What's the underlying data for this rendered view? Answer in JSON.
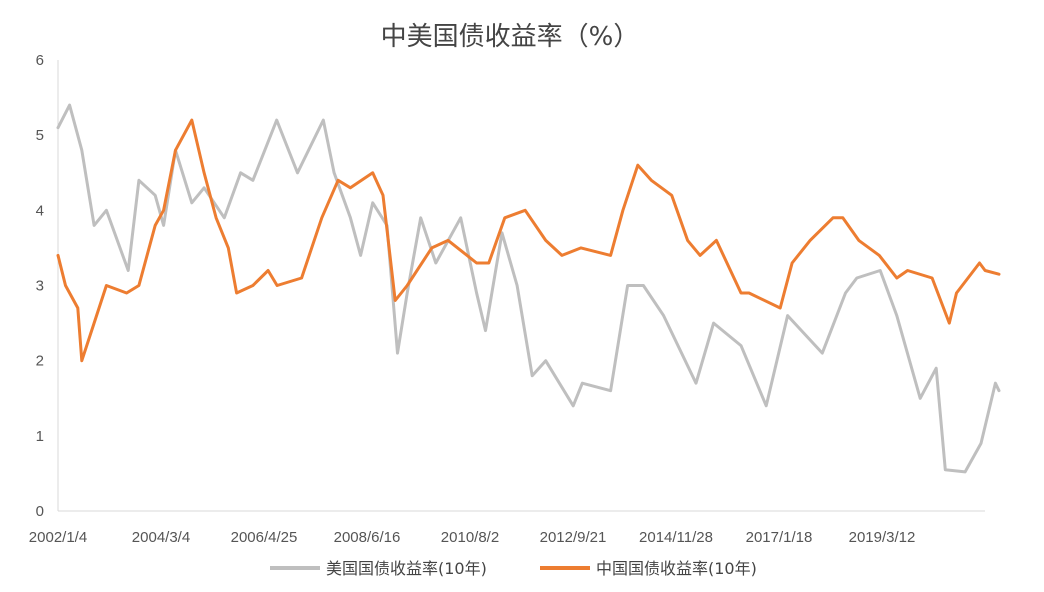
{
  "chart_data": {
    "type": "line",
    "title": "中美国债收益率（%）",
    "xlabel": "",
    "ylabel": "",
    "ylim": [
      0,
      6
    ],
    "y_ticks": [
      "0",
      "1",
      "2",
      "3",
      "4",
      "5",
      "6"
    ],
    "x_tick_labels": [
      "2002/1/4",
      "2004/3/4",
      "2006/4/25",
      "2008/6/16",
      "2010/8/2",
      "2012/9/21",
      "2014/11/28",
      "2017/1/18",
      "2019/3/12"
    ],
    "x_range": [
      "2002-01-04",
      "2020-12-31"
    ],
    "grid": false,
    "legend_position": "bottom",
    "series": [
      {
        "name": "美国国债收益率(10年)",
        "color": "#bfbfbf",
        "points": [
          [
            "2002-01-04",
            5.1
          ],
          [
            "2002-04-01",
            5.4
          ],
          [
            "2002-07-01",
            4.8
          ],
          [
            "2002-10-01",
            3.8
          ],
          [
            "2003-01-01",
            4.0
          ],
          [
            "2003-06-13",
            3.2
          ],
          [
            "2003-09-01",
            4.4
          ],
          [
            "2004-01-01",
            4.2
          ],
          [
            "2004-03-04",
            3.8
          ],
          [
            "2004-06-01",
            4.8
          ],
          [
            "2004-10-01",
            4.1
          ],
          [
            "2005-01-01",
            4.3
          ],
          [
            "2005-06-01",
            3.9
          ],
          [
            "2005-10-01",
            4.5
          ],
          [
            "2006-01-01",
            4.4
          ],
          [
            "2006-06-28",
            5.2
          ],
          [
            "2006-12-01",
            4.5
          ],
          [
            "2007-06-12",
            5.2
          ],
          [
            "2007-09-01",
            4.5
          ],
          [
            "2008-01-01",
            3.9
          ],
          [
            "2008-03-17",
            3.4
          ],
          [
            "2008-06-16",
            4.1
          ],
          [
            "2008-10-01",
            3.8
          ],
          [
            "2008-12-18",
            2.1
          ],
          [
            "2009-03-01",
            2.9
          ],
          [
            "2009-06-10",
            3.9
          ],
          [
            "2009-10-01",
            3.3
          ],
          [
            "2010-04-05",
            3.9
          ],
          [
            "2010-08-02",
            2.9
          ],
          [
            "2010-10-08",
            2.4
          ],
          [
            "2011-02-08",
            3.7
          ],
          [
            "2011-06-01",
            3.0
          ],
          [
            "2011-09-22",
            1.8
          ],
          [
            "2012-01-01",
            2.0
          ],
          [
            "2012-07-25",
            1.4
          ],
          [
            "2012-10-01",
            1.7
          ],
          [
            "2013-05-01",
            1.6
          ],
          [
            "2013-09-05",
            3.0
          ],
          [
            "2014-01-01",
            3.0
          ],
          [
            "2014-06-01",
            2.6
          ],
          [
            "2015-01-30",
            1.7
          ],
          [
            "2015-06-10",
            2.5
          ],
          [
            "2016-01-01",
            2.2
          ],
          [
            "2016-07-08",
            1.4
          ],
          [
            "2016-12-15",
            2.6
          ],
          [
            "2017-09-01",
            2.1
          ],
          [
            "2018-02-21",
            2.9
          ],
          [
            "2018-05-17",
            3.1
          ],
          [
            "2018-11-08",
            3.2
          ],
          [
            "2019-03-12",
            2.6
          ],
          [
            "2019-09-03",
            1.5
          ],
          [
            "2020-01-01",
            1.9
          ],
          [
            "2020-03-09",
            0.55
          ],
          [
            "2020-08-04",
            0.52
          ],
          [
            "2020-12-01",
            0.9
          ],
          [
            "2021-03-19",
            1.7
          ],
          [
            "2021-04-15",
            1.6
          ]
        ]
      },
      {
        "name": "中国国债收益率(10年)",
        "color": "#ed7d31",
        "points": [
          [
            "2002-01-04",
            3.4
          ],
          [
            "2002-03-01",
            3.0
          ],
          [
            "2002-06-01",
            2.7
          ],
          [
            "2002-07-01",
            2.0
          ],
          [
            "2002-10-01",
            2.5
          ],
          [
            "2003-01-01",
            3.0
          ],
          [
            "2003-06-01",
            2.9
          ],
          [
            "2003-09-01",
            3.0
          ],
          [
            "2004-01-01",
            3.8
          ],
          [
            "2004-03-04",
            4.0
          ],
          [
            "2004-06-01",
            4.8
          ],
          [
            "2004-10-01",
            5.2
          ],
          [
            "2005-01-01",
            4.5
          ],
          [
            "2005-04-01",
            3.9
          ],
          [
            "2005-07-01",
            3.5
          ],
          [
            "2005-09-01",
            2.9
          ],
          [
            "2006-01-01",
            3.0
          ],
          [
            "2006-04-25",
            3.2
          ],
          [
            "2006-07-01",
            3.0
          ],
          [
            "2007-01-01",
            3.1
          ],
          [
            "2007-06-01",
            3.9
          ],
          [
            "2007-10-01",
            4.4
          ],
          [
            "2008-01-01",
            4.3
          ],
          [
            "2008-06-16",
            4.5
          ],
          [
            "2008-09-01",
            4.2
          ],
          [
            "2008-12-01",
            2.8
          ],
          [
            "2009-03-01",
            3.0
          ],
          [
            "2009-09-01",
            3.5
          ],
          [
            "2010-01-01",
            3.6
          ],
          [
            "2010-08-02",
            3.3
          ],
          [
            "2010-11-01",
            3.3
          ],
          [
            "2011-03-01",
            3.9
          ],
          [
            "2011-08-01",
            4.0
          ],
          [
            "2012-01-01",
            3.6
          ],
          [
            "2012-05-01",
            3.4
          ],
          [
            "2012-09-21",
            3.5
          ],
          [
            "2013-05-01",
            3.4
          ],
          [
            "2013-08-01",
            4.0
          ],
          [
            "2013-11-20",
            4.6
          ],
          [
            "2014-03-01",
            4.4
          ],
          [
            "2014-08-01",
            4.2
          ],
          [
            "2014-11-28",
            3.6
          ],
          [
            "2015-03-01",
            3.4
          ],
          [
            "2015-07-01",
            3.6
          ],
          [
            "2016-01-01",
            2.9
          ],
          [
            "2016-03-01",
            2.9
          ],
          [
            "2016-10-21",
            2.7
          ],
          [
            "2017-01-18",
            3.3
          ],
          [
            "2017-06-01",
            3.6
          ],
          [
            "2017-11-20",
            3.9
          ],
          [
            "2018-02-01",
            3.9
          ],
          [
            "2018-06-01",
            3.6
          ],
          [
            "2018-11-01",
            3.4
          ],
          [
            "2019-03-12",
            3.1
          ],
          [
            "2019-06-01",
            3.2
          ],
          [
            "2019-12-01",
            3.1
          ],
          [
            "2020-04-08",
            2.5
          ],
          [
            "2020-06-01",
            2.9
          ],
          [
            "2020-11-20",
            3.3
          ],
          [
            "2021-01-01",
            3.2
          ],
          [
            "2021-04-15",
            3.15
          ]
        ]
      }
    ]
  }
}
